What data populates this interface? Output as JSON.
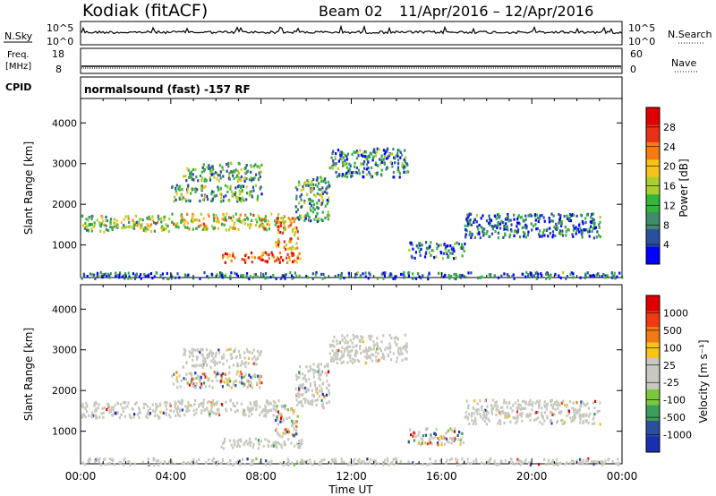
{
  "header": {
    "station": "Kodiak (fitACF)",
    "beam": "Beam 02",
    "date_range": "11/Apr/2016 – 12/Apr/2016"
  },
  "top_panels": {
    "nsky": {
      "left_label": "N.Sky",
      "left_ticks": [
        "10^5",
        "10^0"
      ],
      "right_ticks": [
        "10^5",
        "10^0"
      ],
      "right_label": "N.Search"
    },
    "freq": {
      "left_label_line1": "Freq.",
      "left_label_line2": "[MHz]",
      "left_ticks": [
        "18",
        "8"
      ],
      "right_ticks": [
        "60",
        "0"
      ],
      "right_label": "Nave"
    },
    "cpid": {
      "left_label": "CPID",
      "program": "normalsound (fast) -157 RF"
    }
  },
  "colors": {
    "power_scale": [
      "#0000ff",
      "#2a4f9e",
      "#3f8c6a",
      "#2db83a",
      "#a8cf2b",
      "#f7c21a",
      "#f57c14",
      "#e8301a",
      "#e00000"
    ],
    "velocity_scale": [
      "#e00000",
      "#f03a10",
      "#f27a14",
      "#f7c21a",
      "#c8c8c0",
      "#c8c8c0",
      "#7bc83a",
      "#3a9f5a",
      "#2a4f9e",
      "#1a2fb0"
    ]
  },
  "chart_data": [
    {
      "type": "heatmap",
      "name": "power_panel",
      "xlabel": "",
      "ylabel": "Slant Range [km]",
      "ylim": [
        200,
        4600
      ],
      "xlim": [
        0,
        24
      ],
      "y_ticks": [
        1000,
        2000,
        3000,
        4000
      ],
      "colorbar": {
        "label": "Power [dB]",
        "range": [
          0,
          32
        ],
        "tick_labels": [
          "4",
          "8",
          "12",
          "16",
          "20",
          "24",
          "28"
        ]
      },
      "echo_regions": [
        {
          "t0": 0.0,
          "t1": 4.0,
          "r0": 1350,
          "r1": 1750,
          "level": 0.45
        },
        {
          "t0": 4.0,
          "t1": 9.0,
          "r0": 1400,
          "r1": 1800,
          "level": 0.55
        },
        {
          "t0": 8.6,
          "t1": 9.6,
          "r0": 900,
          "r1": 1700,
          "level": 0.7
        },
        {
          "t0": 6.2,
          "t1": 9.8,
          "r0": 600,
          "r1": 850,
          "level": 0.8
        },
        {
          "t0": 4.0,
          "t1": 8.0,
          "r0": 2100,
          "r1": 2500,
          "level": 0.35
        },
        {
          "t0": 4.5,
          "t1": 8.0,
          "r0": 2600,
          "r1": 3050,
          "level": 0.35
        },
        {
          "t0": 9.5,
          "t1": 11.0,
          "r0": 1600,
          "r1": 2700,
          "level": 0.35
        },
        {
          "t0": 11.0,
          "t1": 14.5,
          "r0": 2700,
          "r1": 3400,
          "level": 0.25
        },
        {
          "t0": 14.5,
          "t1": 17.0,
          "r0": 700,
          "r1": 1100,
          "level": 0.25
        },
        {
          "t0": 17.0,
          "t1": 23.0,
          "r0": 1200,
          "r1": 1800,
          "level": 0.2
        },
        {
          "t0": 0.0,
          "t1": 24.0,
          "r0": 200,
          "r1": 360,
          "level": 0.2
        }
      ]
    },
    {
      "type": "heatmap",
      "name": "velocity_panel",
      "xlabel": "Time UT",
      "ylabel": "Slant Range [km]",
      "ylim": [
        200,
        4600
      ],
      "xlim": [
        0,
        24
      ],
      "y_ticks": [
        1000,
        2000,
        3000,
        4000
      ],
      "x_tick_labels": [
        "00:00",
        "04:00",
        "08:00",
        "12:00",
        "16:00",
        "20:00",
        "00:00"
      ],
      "colorbar": {
        "label": "Velocity [m s⁻¹]",
        "tick_labels": [
          "1000",
          "500",
          "100",
          "25",
          "-25",
          "-100",
          "-500",
          "-1000"
        ]
      },
      "echo_regions": [
        {
          "t0": 0.0,
          "t1": 4.0,
          "r0": 1350,
          "r1": 1750,
          "level": 0.0
        },
        {
          "t0": 4.0,
          "t1": 9.0,
          "r0": 1400,
          "r1": 1800,
          "level": 0.0
        },
        {
          "t0": 8.6,
          "t1": 9.6,
          "r0": 900,
          "r1": 1700,
          "level": 0.3
        },
        {
          "t0": 6.2,
          "t1": 9.8,
          "r0": 600,
          "r1": 850,
          "level": 0.0
        },
        {
          "t0": 4.0,
          "t1": 8.0,
          "r0": 2100,
          "r1": 2500,
          "level": 0.2
        },
        {
          "t0": 4.5,
          "t1": 8.0,
          "r0": 2600,
          "r1": 3050,
          "level": 0.0
        },
        {
          "t0": 9.5,
          "t1": 11.0,
          "r0": 1600,
          "r1": 2700,
          "level": 0.0
        },
        {
          "t0": 11.0,
          "t1": 14.5,
          "r0": 2700,
          "r1": 3400,
          "level": 0.0
        },
        {
          "t0": 14.5,
          "t1": 17.0,
          "r0": 700,
          "r1": 1100,
          "level": 0.2
        },
        {
          "t0": 17.0,
          "t1": 23.0,
          "r0": 1200,
          "r1": 1800,
          "level": 0.0
        },
        {
          "t0": 0.0,
          "t1": 24.0,
          "r0": 200,
          "r1": 360,
          "level": 0.0
        }
      ]
    }
  ]
}
